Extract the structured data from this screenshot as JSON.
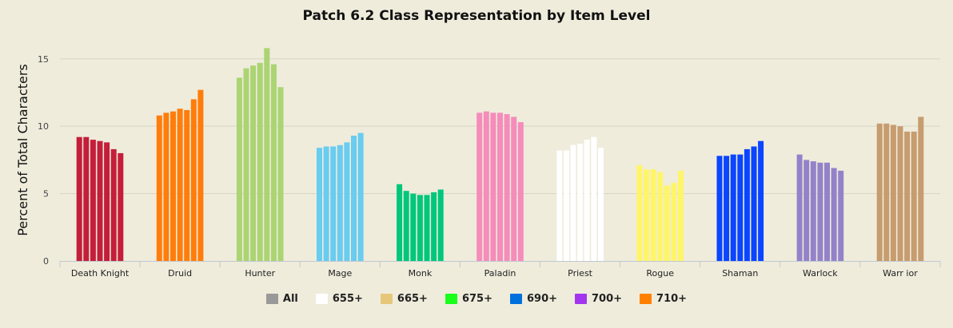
{
  "chart_data": {
    "type": "bar",
    "title": "Patch 6.2 Class Representation by Item Level",
    "ylabel": "Percent of Total Characters",
    "xlabel": "",
    "ylim": [
      0,
      17
    ],
    "yticks": [
      0,
      5,
      10,
      15
    ],
    "grid": true,
    "legend_position": "bottom",
    "categories": [
      "Death Knight",
      "Druid",
      "Hunter",
      "Mage",
      "Monk",
      "Paladin",
      "Priest",
      "Rogue",
      "Shaman",
      "Warlock",
      "Warr ior"
    ],
    "series": [
      {
        "name": "All",
        "values": [
          9.2,
          10.8,
          13.6,
          8.4,
          5.7,
          11.0,
          8.2,
          7.1,
          7.8,
          7.9,
          10.2
        ]
      },
      {
        "name": "655+",
        "values": [
          9.2,
          11.0,
          14.3,
          8.5,
          5.2,
          11.1,
          8.2,
          6.8,
          7.8,
          7.5,
          10.2
        ]
      },
      {
        "name": "665+",
        "values": [
          9.0,
          11.1,
          14.5,
          8.5,
          5.0,
          11.0,
          8.6,
          6.8,
          7.9,
          7.4,
          10.1
        ]
      },
      {
        "name": "675+",
        "values": [
          8.9,
          11.3,
          14.7,
          8.6,
          4.9,
          11.0,
          8.7,
          6.6,
          7.9,
          7.3,
          10.0
        ]
      },
      {
        "name": "690+",
        "values": [
          8.8,
          11.2,
          15.8,
          8.8,
          4.9,
          10.9,
          9.0,
          5.6,
          8.3,
          7.3,
          9.6
        ]
      },
      {
        "name": "700+",
        "values": [
          8.3,
          12.0,
          14.6,
          9.3,
          5.1,
          10.7,
          9.2,
          5.8,
          8.5,
          6.9,
          9.6
        ]
      },
      {
        "name": "710+",
        "values": [
          8.0,
          12.7,
          12.9,
          9.5,
          5.3,
          10.3,
          8.4,
          6.7,
          8.9,
          6.7,
          10.7
        ]
      }
    ],
    "category_colors": [
      "#c41e3a",
      "#ff7d0a",
      "#abd473",
      "#69ccf0",
      "#00c77b",
      "#f58cba",
      "#ffffff",
      "#fff569",
      "#0a45ff",
      "#9482c9",
      "#c79c6e"
    ],
    "legend": [
      {
        "name": "All",
        "color": "#999999"
      },
      {
        "name": "655+",
        "color": "#ffffff"
      },
      {
        "name": "665+",
        "color": "#e6c77a"
      },
      {
        "name": "675+",
        "color": "#1aff1a"
      },
      {
        "name": "690+",
        "color": "#0070dd"
      },
      {
        "name": "700+",
        "color": "#a335ee"
      },
      {
        "name": "710+",
        "color": "#ff8000"
      }
    ]
  }
}
